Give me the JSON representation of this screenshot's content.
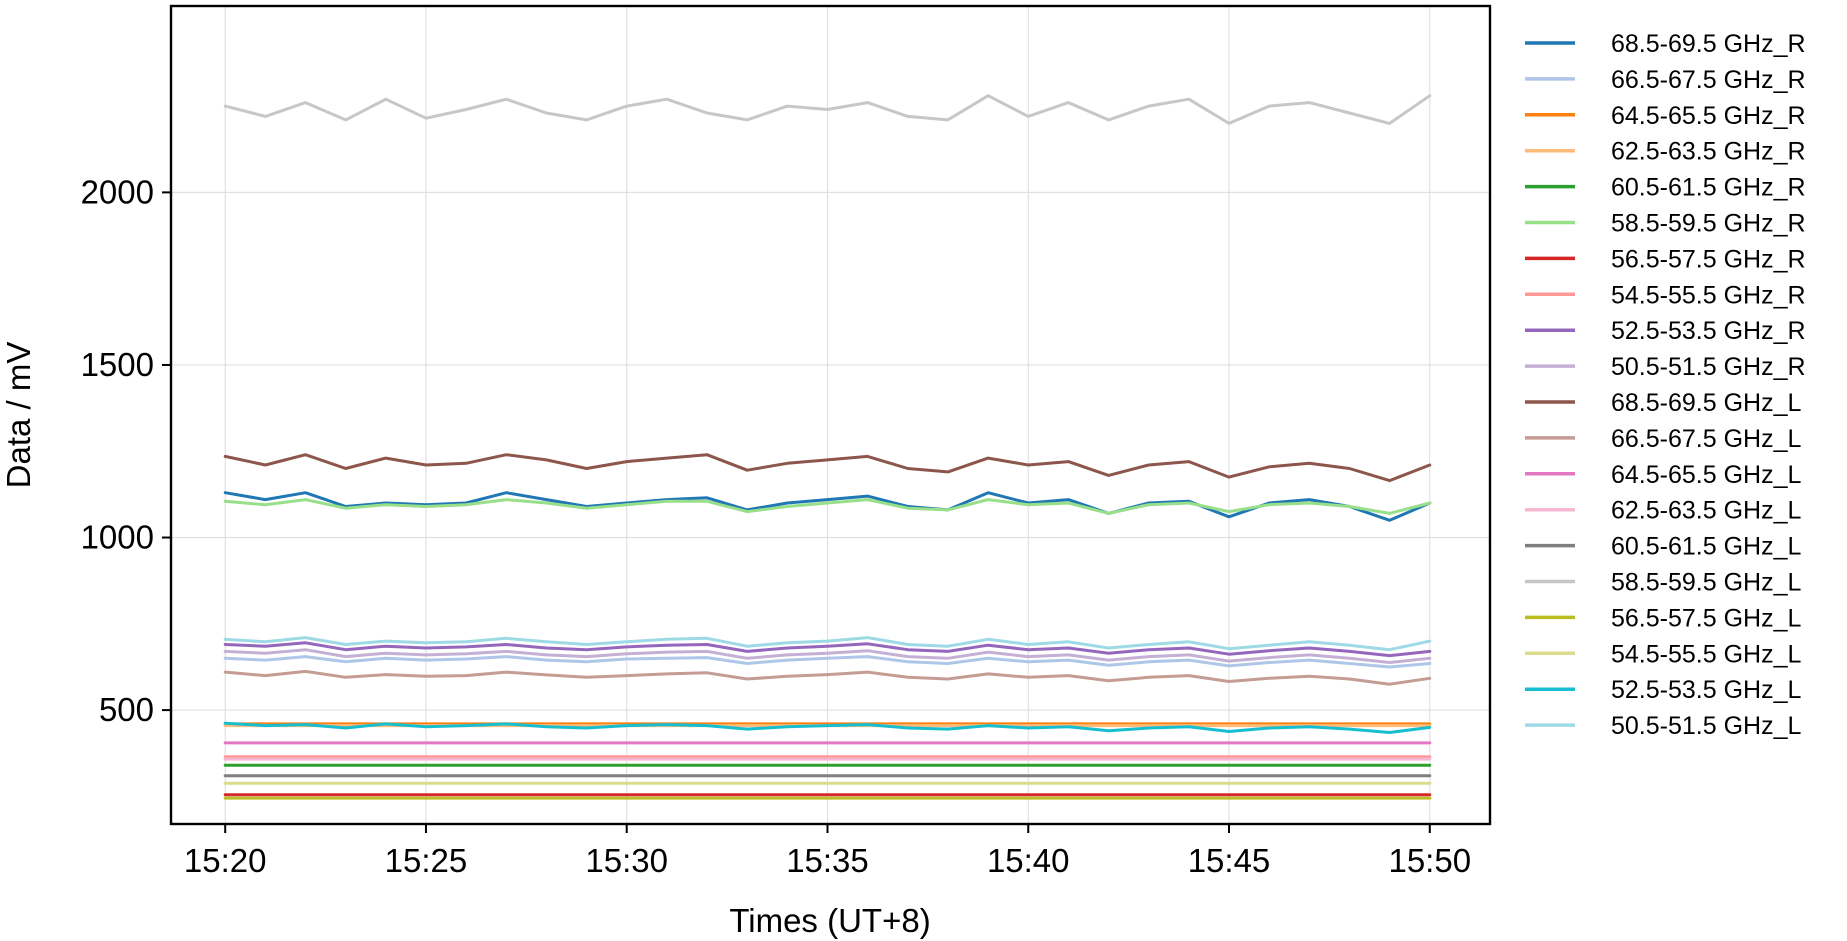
{
  "chart_data": {
    "type": "line",
    "title": "",
    "xlabel": "Times (UT+8)",
    "ylabel": "Data / mV",
    "x_ticks": [
      "15:20",
      "15:25",
      "15:30",
      "15:35",
      "15:40",
      "15:45",
      "15:50"
    ],
    "x_tick_minutes": [
      0,
      5,
      10,
      15,
      20,
      25,
      30
    ],
    "xlim_minutes": [
      -1.35,
      31.5
    ],
    "y_ticks": [
      500,
      1000,
      1500,
      2000
    ],
    "ylim": [
      170,
      2540
    ],
    "grid": true,
    "legend_position": "right-outside",
    "x_minutes": [
      0,
      1,
      2,
      3,
      4,
      5,
      6,
      7,
      8,
      9,
      10,
      11,
      12,
      13,
      14,
      15,
      16,
      17,
      18,
      19,
      20,
      21,
      22,
      23,
      24,
      25,
      26,
      27,
      28,
      29,
      30
    ],
    "series": [
      {
        "name": "68.5-69.5 GHz_R",
        "color": "#1f77b4",
        "values": [
          1130,
          1110,
          1130,
          1090,
          1100,
          1095,
          1100,
          1130,
          1110,
          1090,
          1100,
          1110,
          1115,
          1080,
          1100,
          1110,
          1120,
          1090,
          1080,
          1130,
          1100,
          1110,
          1070,
          1100,
          1105,
          1060,
          1100,
          1110,
          1090,
          1050,
          1100
        ]
      },
      {
        "name": "66.5-67.5 GHz_R",
        "color": "#aec7e8",
        "values": [
          650,
          645,
          655,
          640,
          650,
          645,
          648,
          655,
          645,
          640,
          648,
          650,
          652,
          635,
          645,
          650,
          655,
          640,
          635,
          650,
          640,
          645,
          630,
          640,
          645,
          628,
          638,
          645,
          635,
          625,
          635
        ]
      },
      {
        "name": "64.5-65.5 GHz_R",
        "color": "#ff7f0e",
        "values": [
          460,
          460,
          460,
          460,
          460,
          460,
          460,
          460,
          460,
          460,
          460,
          460,
          460,
          460,
          460,
          460,
          460,
          460,
          460,
          460,
          460,
          460,
          460,
          460,
          460,
          460,
          460,
          460,
          460,
          460,
          460
        ]
      },
      {
        "name": "62.5-63.5 GHz_R",
        "color": "#ffbb78",
        "values": [
          455,
          455,
          455,
          455,
          455,
          455,
          455,
          455,
          455,
          455,
          455,
          455,
          455,
          455,
          455,
          455,
          455,
          455,
          455,
          455,
          455,
          455,
          455,
          455,
          455,
          455,
          455,
          455,
          455,
          455,
          455
        ]
      },
      {
        "name": "60.5-61.5 GHz_R",
        "color": "#2ca02c",
        "values": [
          340,
          340,
          340,
          340,
          340,
          340,
          340,
          340,
          340,
          340,
          340,
          340,
          340,
          340,
          340,
          340,
          340,
          340,
          340,
          340,
          340,
          340,
          340,
          340,
          340,
          340,
          340,
          340,
          340,
          340,
          340
        ]
      },
      {
        "name": "58.5-59.5 GHz_R",
        "color": "#98df8a",
        "values": [
          1105,
          1095,
          1110,
          1085,
          1095,
          1090,
          1095,
          1110,
          1100,
          1085,
          1095,
          1105,
          1105,
          1075,
          1090,
          1100,
          1110,
          1085,
          1080,
          1110,
          1095,
          1100,
          1070,
          1095,
          1100,
          1075,
          1095,
          1100,
          1090,
          1070,
          1100
        ]
      },
      {
        "name": "56.5-57.5 GHz_R",
        "color": "#d62728",
        "values": [
          255,
          255,
          255,
          255,
          255,
          255,
          255,
          255,
          255,
          255,
          255,
          255,
          255,
          255,
          255,
          255,
          255,
          255,
          255,
          255,
          255,
          255,
          255,
          255,
          255,
          255,
          255,
          255,
          255,
          255,
          255
        ]
      },
      {
        "name": "54.5-55.5 GHz_R",
        "color": "#ff9896",
        "values": [
          365,
          365,
          365,
          365,
          365,
          365,
          365,
          365,
          365,
          365,
          365,
          365,
          365,
          365,
          365,
          365,
          365,
          365,
          365,
          365,
          365,
          365,
          365,
          365,
          365,
          365,
          365,
          365,
          365,
          365,
          365
        ]
      },
      {
        "name": "52.5-53.5 GHz_R",
        "color": "#9467bd",
        "values": [
          690,
          685,
          695,
          675,
          685,
          680,
          683,
          690,
          680,
          675,
          683,
          688,
          690,
          670,
          680,
          685,
          692,
          675,
          670,
          688,
          675,
          680,
          665,
          675,
          680,
          662,
          672,
          680,
          670,
          658,
          670
        ]
      },
      {
        "name": "50.5-51.5 GHz_R",
        "color": "#c5b0d5",
        "values": [
          670,
          665,
          675,
          655,
          665,
          660,
          663,
          670,
          660,
          655,
          663,
          668,
          670,
          650,
          660,
          665,
          672,
          655,
          650,
          668,
          655,
          660,
          645,
          655,
          660,
          642,
          652,
          660,
          650,
          638,
          650
        ]
      },
      {
        "name": "68.5-69.5 GHz_L",
        "color": "#8c564b",
        "values": [
          1235,
          1210,
          1240,
          1200,
          1230,
          1210,
          1215,
          1240,
          1225,
          1200,
          1220,
          1230,
          1240,
          1195,
          1215,
          1225,
          1235,
          1200,
          1190,
          1230,
          1210,
          1220,
          1180,
          1210,
          1220,
          1175,
          1205,
          1215,
          1200,
          1165,
          1210
        ]
      },
      {
        "name": "66.5-67.5 GHz_L",
        "color": "#c49c94",
        "values": [
          610,
          600,
          612,
          595,
          603,
          598,
          600,
          610,
          602,
          595,
          600,
          605,
          608,
          590,
          598,
          603,
          610,
          595,
          590,
          605,
          595,
          600,
          585,
          595,
          600,
          583,
          592,
          598,
          590,
          575,
          592
        ]
      },
      {
        "name": "64.5-65.5 GHz_L",
        "color": "#e377c2",
        "values": [
          405,
          405,
          405,
          405,
          405,
          405,
          405,
          405,
          405,
          405,
          405,
          405,
          405,
          405,
          405,
          405,
          405,
          405,
          405,
          405,
          405,
          405,
          405,
          405,
          405,
          405,
          405,
          405,
          405,
          405,
          405
        ]
      },
      {
        "name": "62.5-63.5 GHz_L",
        "color": "#f7b6d2",
        "values": [
          358,
          358,
          358,
          358,
          358,
          358,
          358,
          358,
          358,
          358,
          358,
          358,
          358,
          358,
          358,
          358,
          358,
          358,
          358,
          358,
          358,
          358,
          358,
          358,
          358,
          358,
          358,
          358,
          358,
          358,
          358
        ]
      },
      {
        "name": "60.5-61.5 GHz_L",
        "color": "#7f7f7f",
        "values": [
          310,
          310,
          310,
          310,
          310,
          310,
          310,
          310,
          310,
          310,
          310,
          310,
          310,
          310,
          310,
          310,
          310,
          310,
          310,
          310,
          310,
          310,
          310,
          310,
          310,
          310,
          310,
          310,
          310,
          310,
          310
        ]
      },
      {
        "name": "58.5-59.5 GHz_L",
        "color": "#c7c7c7",
        "values": [
          2250,
          2220,
          2260,
          2210,
          2270,
          2215,
          2240,
          2270,
          2230,
          2210,
          2250,
          2270,
          2230,
          2210,
          2250,
          2240,
          2260,
          2220,
          2210,
          2280,
          2220,
          2260,
          2210,
          2250,
          2270,
          2200,
          2250,
          2260,
          2230,
          2200,
          2280
        ]
      },
      {
        "name": "56.5-57.5 GHz_L",
        "color": "#bcbd22",
        "values": [
          245,
          245,
          245,
          245,
          245,
          245,
          245,
          245,
          245,
          245,
          245,
          245,
          245,
          245,
          245,
          245,
          245,
          245,
          245,
          245,
          245,
          245,
          245,
          245,
          245,
          245,
          245,
          245,
          245,
          245,
          245
        ]
      },
      {
        "name": "54.5-55.5 GHz_L",
        "color": "#dbdb8d",
        "values": [
          288,
          288,
          288,
          288,
          288,
          288,
          288,
          288,
          288,
          288,
          288,
          288,
          288,
          288,
          288,
          288,
          288,
          288,
          288,
          288,
          288,
          288,
          288,
          288,
          288,
          288,
          288,
          288,
          288,
          288,
          288
        ]
      },
      {
        "name": "52.5-53.5 GHz_L",
        "color": "#17becf",
        "values": [
          462,
          455,
          458,
          448,
          460,
          452,
          455,
          460,
          452,
          448,
          455,
          458,
          455,
          445,
          452,
          455,
          458,
          448,
          445,
          455,
          448,
          452,
          440,
          448,
          452,
          438,
          448,
          452,
          445,
          435,
          450
        ]
      },
      {
        "name": "50.5-51.5 GHz_L",
        "color": "#9edae5",
        "values": [
          705,
          698,
          710,
          690,
          700,
          695,
          698,
          708,
          698,
          690,
          698,
          705,
          708,
          685,
          695,
          700,
          710,
          690,
          685,
          705,
          690,
          698,
          680,
          690,
          698,
          678,
          688,
          698,
          688,
          675,
          700
        ]
      }
    ]
  }
}
